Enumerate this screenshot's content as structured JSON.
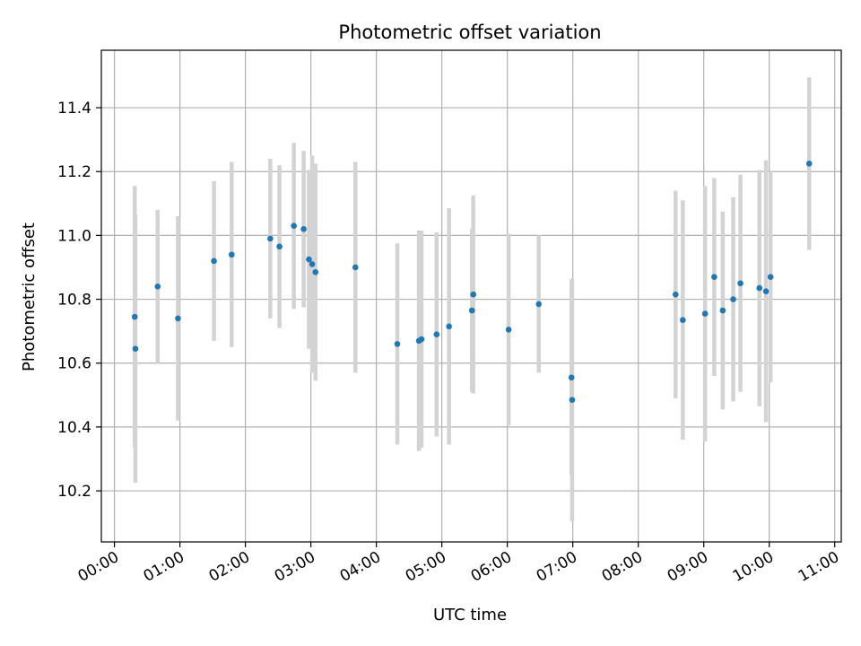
{
  "chart_data": {
    "type": "scatter",
    "title": "Photometric offset variation",
    "xlabel": "UTC time",
    "ylabel": "Photometric offset",
    "x_unit": "hours UTC",
    "xlim": [
      -0.2,
      11.1
    ],
    "ylim": [
      10.04,
      11.58
    ],
    "grid": true,
    "x_ticks": [
      {
        "value": 0,
        "label": "00:00"
      },
      {
        "value": 1,
        "label": "01:00"
      },
      {
        "value": 2,
        "label": "02:00"
      },
      {
        "value": 3,
        "label": "03:00"
      },
      {
        "value": 4,
        "label": "04:00"
      },
      {
        "value": 5,
        "label": "05:00"
      },
      {
        "value": 6,
        "label": "06:00"
      },
      {
        "value": 7,
        "label": "07:00"
      },
      {
        "value": 8,
        "label": "08:00"
      },
      {
        "value": 9,
        "label": "09:00"
      },
      {
        "value": 10,
        "label": "10:00"
      },
      {
        "value": 11,
        "label": "11:00"
      }
    ],
    "y_ticks": [
      {
        "value": 10.2,
        "label": "10.2"
      },
      {
        "value": 10.4,
        "label": "10.4"
      },
      {
        "value": 10.6,
        "label": "10.6"
      },
      {
        "value": 10.8,
        "label": "10.8"
      },
      {
        "value": 11.0,
        "label": "11.0"
      },
      {
        "value": 11.2,
        "label": "11.2"
      },
      {
        "value": 11.4,
        "label": "11.4"
      }
    ],
    "marker_color": "#1f77b4",
    "errorbar_color": "#d3d3d3",
    "points": [
      {
        "x": 0.31,
        "y": 10.745,
        "err": 0.41
      },
      {
        "x": 0.32,
        "y": 10.645,
        "err": 0.42
      },
      {
        "x": 0.66,
        "y": 10.84,
        "err": 0.24
      },
      {
        "x": 0.97,
        "y": 10.74,
        "err": 0.32
      },
      {
        "x": 1.52,
        "y": 10.92,
        "err": 0.25
      },
      {
        "x": 1.79,
        "y": 10.94,
        "err": 0.29
      },
      {
        "x": 2.38,
        "y": 10.99,
        "err": 0.25
      },
      {
        "x": 2.52,
        "y": 10.965,
        "err": 0.255
      },
      {
        "x": 2.74,
        "y": 11.03,
        "err": 0.26
      },
      {
        "x": 2.89,
        "y": 11.02,
        "err": 0.245
      },
      {
        "x": 2.97,
        "y": 10.925,
        "err": 0.28
      },
      {
        "x": 3.02,
        "y": 10.91,
        "err": 0.34
      },
      {
        "x": 3.07,
        "y": 10.885,
        "err": 0.34
      },
      {
        "x": 3.68,
        "y": 10.9,
        "err": 0.33
      },
      {
        "x": 4.32,
        "y": 10.66,
        "err": 0.315
      },
      {
        "x": 4.65,
        "y": 10.67,
        "err": 0.345
      },
      {
        "x": 4.69,
        "y": 10.675,
        "err": 0.34
      },
      {
        "x": 4.92,
        "y": 10.69,
        "err": 0.32
      },
      {
        "x": 5.11,
        "y": 10.715,
        "err": 0.37
      },
      {
        "x": 5.46,
        "y": 10.765,
        "err": 0.255
      },
      {
        "x": 5.48,
        "y": 10.815,
        "err": 0.31
      },
      {
        "x": 6.02,
        "y": 10.705,
        "err": 0.3
      },
      {
        "x": 6.48,
        "y": 10.785,
        "err": 0.215
      },
      {
        "x": 6.98,
        "y": 10.555,
        "err": 0.305
      },
      {
        "x": 6.99,
        "y": 10.485,
        "err": 0.38
      },
      {
        "x": 8.57,
        "y": 10.815,
        "err": 0.325
      },
      {
        "x": 8.68,
        "y": 10.735,
        "err": 0.375
      },
      {
        "x": 9.02,
        "y": 10.755,
        "err": 0.4
      },
      {
        "x": 9.16,
        "y": 10.87,
        "err": 0.31
      },
      {
        "x": 9.29,
        "y": 10.765,
        "err": 0.31
      },
      {
        "x": 9.45,
        "y": 10.8,
        "err": 0.32
      },
      {
        "x": 9.56,
        "y": 10.85,
        "err": 0.34
      },
      {
        "x": 9.85,
        "y": 10.835,
        "err": 0.37
      },
      {
        "x": 9.95,
        "y": 10.825,
        "err": 0.41
      },
      {
        "x": 10.02,
        "y": 10.87,
        "err": 0.33
      },
      {
        "x": 10.61,
        "y": 11.225,
        "err": 0.27
      }
    ]
  }
}
